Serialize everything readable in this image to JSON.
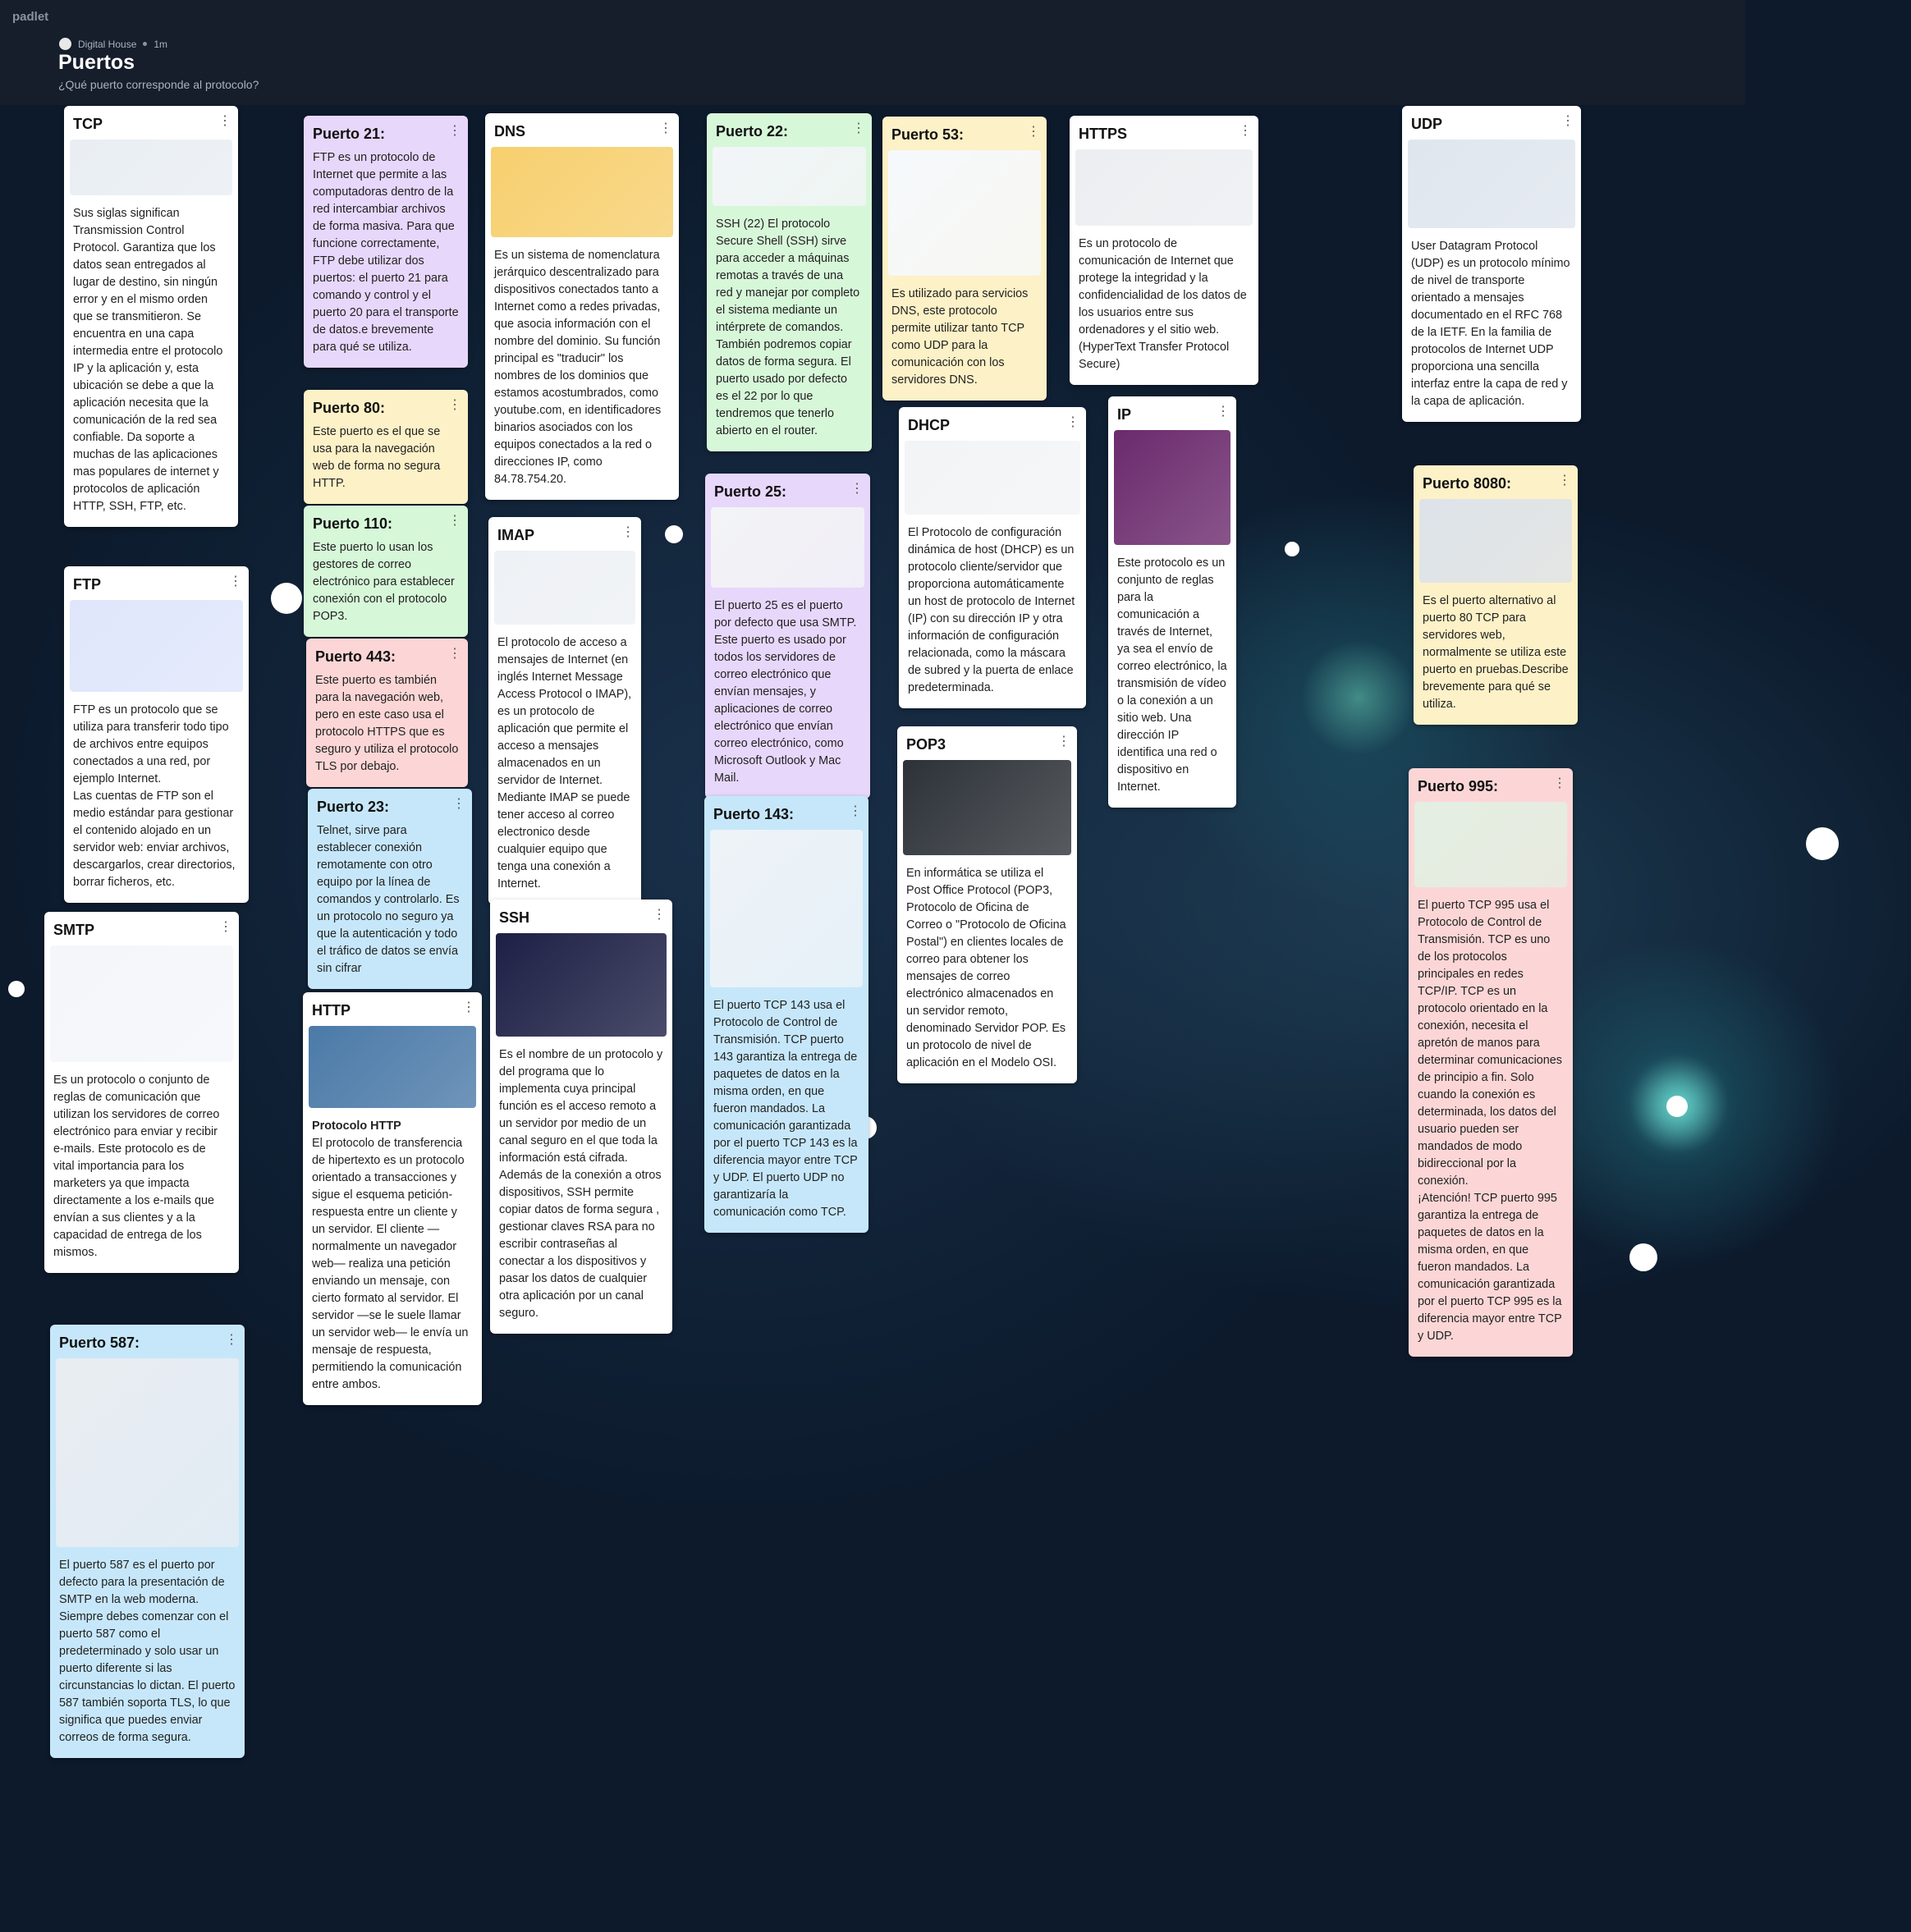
{
  "header": {
    "app": "padlet",
    "author": "Digital House",
    "time": "1m",
    "title": "Puertos",
    "subtitle": "¿Qué puerto corresponde al protocolo?"
  },
  "cards": [
    {
      "title": "TCP",
      "color": "#ffffff",
      "body": [
        "Sus siglas significan Transmission Control Protocol. Garantiza que los datos sean entregados al lugar de destino, sin ningún error y en el mismo orden que se transmitieron. Se encuentra en una capa intermedia entre el protocolo IP y la aplicación y, esta ubicación se debe a que la aplicación necesita que la comunicación de la red sea confiable. Da soporte a muchas de las aplicaciones mas populares de internet y protocolos de aplicación HTTP, SSH, FTP, etc."
      ]
    },
    {
      "title": "FTP",
      "color": "#ffffff",
      "body": [
        "FTP es un protocolo que se utiliza para transferir todo tipo de archivos entre equipos conectados a una red, por ejemplo Internet.",
        "Las cuentas de FTP son el medio estándar para gestionar el contenido alojado en un servidor web: enviar archivos, descargarlos, crear directorios, borrar ficheros, etc."
      ]
    },
    {
      "title": "SMTP",
      "color": "#ffffff",
      "body": [
        "Es un protocolo o conjunto de reglas de comunicación que utilizan los servidores de correo electrónico para enviar y recibir e-mails. Este protocolo es de vital importancia para los marketers ya que impacta directamente a los e-mails que envían a sus clientes y a la capacidad de entrega de los mismos."
      ]
    },
    {
      "title": "Puerto 587:",
      "color": "#c6e7fa",
      "body": [
        "El puerto 587 es el puerto por defecto para la presentación de SMTP en la web moderna. Siempre debes comenzar con el puerto 587 como el predeterminado y solo usar un puerto diferente si las circunstancias lo dictan. El puerto 587 también soporta TLS, lo que significa que puedes enviar correos de forma segura."
      ]
    },
    {
      "title": "Puerto 21:",
      "color": "#e7d7fb",
      "body": [
        " FTP es un protocolo de Internet que permite a las computadoras dentro de la red intercambiar archivos de forma masiva. Para que funcione correctamente, FTP debe utilizar dos puertos: el puerto 21 para comando y control y el puerto 20 para el transporte de datos.e brevemente para qué se utiliza."
      ]
    },
    {
      "title": "Puerto 80:",
      "color": "#fdf1c7",
      "body": [
        "Este puerto es el que se usa para la navegación web de forma no segura HTTP."
      ]
    },
    {
      "title": "Puerto 110:",
      "color": "#d7f7d9",
      "body": [
        "Este puerto lo usan los gestores de correo electrónico para establecer conexión con el protocolo POP3."
      ]
    },
    {
      "title": "Puerto 443:",
      "color": "#fcd6d6",
      "body": [
        "Este puerto es también para la navegación web, pero en este caso usa el protocolo HTTPS que es seguro y utiliza el protocolo TLS por debajo."
      ]
    },
    {
      "title": "Puerto 23:",
      "color": "#c6e7fa",
      "body": [
        "Telnet, sirve para establecer conexión remotamente con otro equipo por la línea de comandos y controlarlo. Es un protocolo no seguro ya que la autenticación y todo el tráfico de datos se envía sin cifrar"
      ]
    },
    {
      "title": "HTTP",
      "color": "#ffffff",
      "body": [
        "Protocolo HTTP",
        "El protocolo de transferencia de hipertexto es un protocolo orientado a transacciones y sigue el esquema petición-respuesta entre un cliente y un servidor. El cliente —normalmente un navegador web— realiza una petición enviando un mensaje, con cierto formato al servidor. El servidor —se le suele llamar un servidor web— le envía un mensaje de respuesta, permitiendo la comunicación entre ambos."
      ]
    },
    {
      "title": "DNS",
      "color": "#ffffff",
      "body": [
        "Es un sistema de nomenclatura jerárquico descentralizado para dispositivos conectados tanto a Internet como a redes privadas, que asocia información con el nombre del dominio. Su función principal es \"traducir\" los nombres de los dominios que estamos acostumbrados, como youtube.com, en identificadores binarios asociados con los equipos conectados a la red o direcciones IP, como 84.78.754.20."
      ]
    },
    {
      "title": "IMAP",
      "color": "#ffffff",
      "body": [
        "El protocolo de acceso a mensajes de Internet (en inglés Internet Message Access Protocol o IMAP), es un protocolo de aplicación que permite el acceso a mensajes almacenados en un servidor de Internet. Mediante IMAP se puede tener acceso al correo electronico desde cualquier equipo que tenga una conexión a Internet."
      ]
    },
    {
      "title": "SSH",
      "color": "#ffffff",
      "body": [
        "Es el nombre de un protocolo y del programa que lo implementa cuya principal función es el acceso remoto a un servidor por medio de un canal seguro en el que toda la información está cifrada. Además de la conexión a otros dispositivos, SSH permite copiar datos de forma segura , gestionar claves RSA para no escribir contraseñas al conectar a los dispositivos y pasar los datos de cualquier otra aplicación por un canal seguro."
      ]
    },
    {
      "title": "Puerto 22:",
      "color": "#d7f7d9",
      "body": [
        "SSH (22) El protocolo Secure Shell (SSH) sirve para acceder a máquinas remotas a través de una red y manejar por completo el sistema mediante un intérprete de comandos. También podremos copiar datos de forma segura. El puerto usado por defecto es el 22 por lo que tendremos que tenerlo abierto en el router."
      ]
    },
    {
      "title": "Puerto 25:",
      "color": "#e7d7fb",
      "body": [
        "El puerto 25 es el puerto por defecto que usa SMTP. Este puerto es usado por todos los servidores de correo electrónico que envían mensajes, y aplicaciones de correo electrónico que envían correo electrónico, como Microsoft Outlook y Mac Mail."
      ]
    },
    {
      "title": "Puerto 143:",
      "color": "#c6e7fa",
      "body": [
        "El puerto TCP 143 usa el Protocolo de Control de Transmisión. TCP puerto 143 garantiza la entrega de paquetes de datos en la misma orden, en que fueron mandados. La comunicación garantizada por el puerto TCP 143 es la diferencia mayor entre TCP y UDP. El puerto UDP no garantizaría la comunicación como TCP."
      ]
    },
    {
      "title": "Puerto 53:",
      "color": "#fdf1c7",
      "body": [
        "Es utilizado para servicios DNS, este protocolo permite utilizar tanto TCP como UDP para la comunicación con los servidores DNS."
      ]
    },
    {
      "title": "DHCP",
      "color": "#ffffff",
      "body": [
        "El Protocolo de configuración dinámica de host (DHCP) es un protocolo cliente/servidor que proporciona automáticamente un host de protocolo de Internet (IP) con su dirección IP y otra información de configuración relacionada, como la máscara de subred y la puerta de enlace predeterminada."
      ]
    },
    {
      "title": "POP3",
      "color": "#ffffff",
      "body": [
        "En informática se utiliza el Post Office Protocol (POP3, Protocolo de Oficina de Correo o \"Protocolo de Oficina Postal\") en clientes locales de correo para obtener los mensajes de correo electrónico almacenados en un servidor remoto, denominado Servidor POP. Es un protocolo de nivel de aplicación en el Modelo OSI."
      ]
    },
    {
      "title": "HTTPS",
      "color": "#ffffff",
      "body": [
        "Es un protocolo de comunicación de Internet que protege la integridad y la confidencialidad de los datos de los usuarios entre sus ordenadores y el sitio web. (HyperText Transfer Protocol Secure)"
      ]
    },
    {
      "title": "IP",
      "color": "#ffffff",
      "body": [
        "Este protocolo es un conjunto de reglas para la comunicación a través de Internet, ya sea el envío de correo electrónico, la transmisión de vídeo o la conexión a un sitio web. Una dirección IP identifica una red o dispositivo en Internet."
      ]
    },
    {
      "title": "UDP",
      "color": "#ffffff",
      "body": [
        " User Datagram Protocol (UDP) es un protocolo mínimo de nivel de transporte orientado a mensajes documentado en el RFC 768 de la IETF. En la familia de protocolos de Internet UDP proporciona una sencilla interfaz entre la capa de red y la capa de aplicación."
      ]
    },
    {
      "title": "Puerto 8080:",
      "color": "#fdf1c7",
      "body": [
        "Es el puerto alternativo al puerto 80 TCP para servidores web, normalmente se utiliza este puerto en pruebas.Describe brevemente para qué se utiliza."
      ]
    },
    {
      "title": "Puerto 995:",
      "color": "#fcd6d6",
      "body": [
        "El puerto TCP 995 usa el Protocolo de Control de Transmisión. TCP es uno de los protocolos principales en redes TCP/IP. TCP es un protocolo orientado en la conexión, necesita el apretón de manos para determinar comunicaciones de principio a fin. Solo cuando la conexión es determinada, los datos del usuario pueden ser mandados de modo bidireccional por la conexión.",
        "¡Atención! TCP puerto 995 garantiza la entrega de paquetes de datos en la misma orden, en que fueron mandados. La comunicación garantizada por el puerto TCP 995 es la diferencia mayor entre TCP y UDP."
      ]
    }
  ]
}
